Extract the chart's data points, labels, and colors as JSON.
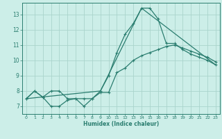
{
  "title": "",
  "xlabel": "Humidex (Indice chaleur)",
  "bg_color": "#cceee8",
  "grid_color": "#aad4cc",
  "line_color": "#2a7d6f",
  "xlim": [
    -0.5,
    23.5
  ],
  "ylim": [
    6.5,
    13.75
  ],
  "yticks": [
    7,
    8,
    9,
    10,
    11,
    12,
    13
  ],
  "xticks": [
    0,
    1,
    2,
    3,
    4,
    5,
    6,
    7,
    8,
    9,
    10,
    11,
    12,
    13,
    14,
    15,
    16,
    17,
    18,
    19,
    20,
    21,
    22,
    23
  ],
  "series1_x": [
    0,
    1,
    2,
    3,
    4,
    5,
    6,
    7,
    8,
    9,
    10,
    11,
    12,
    13,
    14,
    15,
    16,
    17,
    18,
    19,
    20,
    21,
    22,
    23
  ],
  "series1_y": [
    7.5,
    8.0,
    7.6,
    7.0,
    7.0,
    7.4,
    7.5,
    7.5,
    7.5,
    8.0,
    9.0,
    10.5,
    11.7,
    12.4,
    13.4,
    13.4,
    12.7,
    11.1,
    11.1,
    10.7,
    10.4,
    10.2,
    10.0,
    9.7
  ],
  "series2_x": [
    0,
    1,
    2,
    3,
    4,
    5,
    6,
    7,
    8,
    9,
    10,
    11,
    12,
    13,
    14,
    15,
    16,
    17,
    18,
    19,
    20,
    21,
    22,
    23
  ],
  "series2_y": [
    7.5,
    8.0,
    7.6,
    8.0,
    8.0,
    7.5,
    7.5,
    7.0,
    7.5,
    7.9,
    7.9,
    9.2,
    9.5,
    10.0,
    10.3,
    10.5,
    10.7,
    10.9,
    11.0,
    10.8,
    10.6,
    10.4,
    10.2,
    9.9
  ],
  "series3_x": [
    0,
    9,
    14,
    23
  ],
  "series3_y": [
    7.5,
    8.0,
    13.4,
    9.7
  ]
}
